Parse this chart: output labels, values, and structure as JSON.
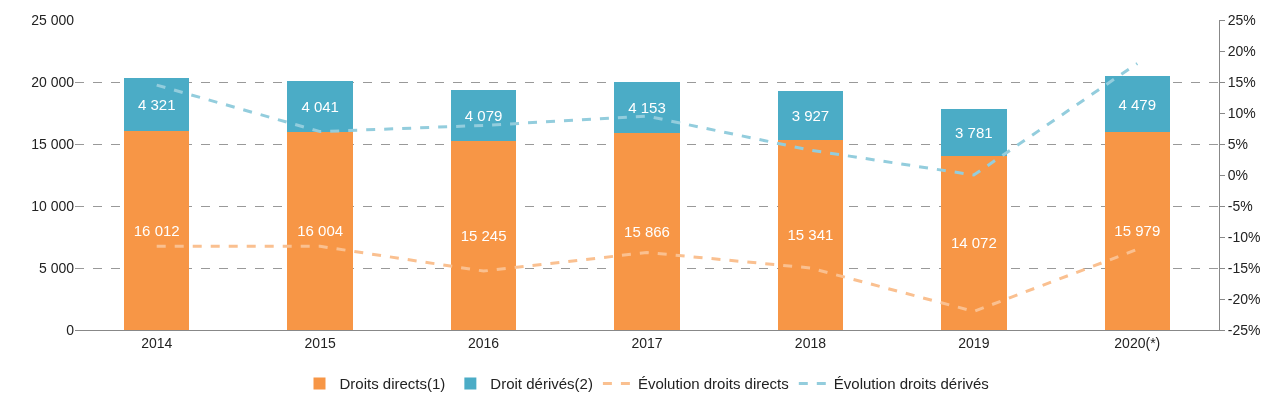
{
  "chart_data": {
    "type": "bar",
    "stacked": true,
    "categories": [
      "2014",
      "2015",
      "2016",
      "2017",
      "2018",
      "2019",
      "2020(*)"
    ],
    "series": [
      {
        "name": "Droits directs(1)",
        "color": "#f79646",
        "values": [
          16012,
          16004,
          15245,
          15866,
          15341,
          14072,
          15979
        ],
        "value_labels": [
          "16 012",
          "16 004",
          "15 245",
          "15 866",
          "15 341",
          "14 072",
          "15 979"
        ]
      },
      {
        "name": "Droit dérivés(2)",
        "color": "#4bacc6",
        "values": [
          4321,
          4041,
          4079,
          4153,
          3927,
          3781,
          4479
        ],
        "value_labels": [
          "4 321",
          "4 041",
          "4 079",
          "4 153",
          "3 927",
          "3 781",
          "4 479"
        ]
      },
      {
        "name": "Évolution droits directs",
        "type": "line",
        "axis": "y2",
        "line_style": "dashed",
        "color": "#fac090",
        "values": [
          -11.5,
          -11.5,
          -15.5,
          -12.5,
          -15,
          -22,
          -12
        ]
      },
      {
        "name": "Évolution droits dérivés",
        "type": "line",
        "axis": "y2",
        "line_style": "dashed",
        "color": "#93cddd",
        "values": [
          14.5,
          7,
          8,
          9.5,
          4,
          0,
          18
        ]
      }
    ],
    "ylim": [
      0,
      25000
    ],
    "yticks": [
      {
        "value": 0,
        "label": "0"
      },
      {
        "value": 5000,
        "label": "5 000"
      },
      {
        "value": 10000,
        "label": "10 000"
      },
      {
        "value": 15000,
        "label": "15 000"
      },
      {
        "value": 20000,
        "label": "20 000"
      },
      {
        "value": 25000,
        "label": "25 000"
      }
    ],
    "y2lim": [
      -25,
      25
    ],
    "y2ticks": [
      {
        "value": -25,
        "label": "-25%"
      },
      {
        "value": -20,
        "label": "-20%"
      },
      {
        "value": -15,
        "label": "-15%"
      },
      {
        "value": -10,
        "label": "-10%"
      },
      {
        "value": -5,
        "label": "-5%"
      },
      {
        "value": 0,
        "label": "0%"
      },
      {
        "value": 5,
        "label": "5%"
      },
      {
        "value": 10,
        "label": "10%"
      },
      {
        "value": 15,
        "label": "15%"
      },
      {
        "value": 20,
        "label": "20%"
      },
      {
        "value": 25,
        "label": "25%"
      }
    ],
    "grid": "y",
    "legend": "bottom",
    "marker": "none"
  }
}
